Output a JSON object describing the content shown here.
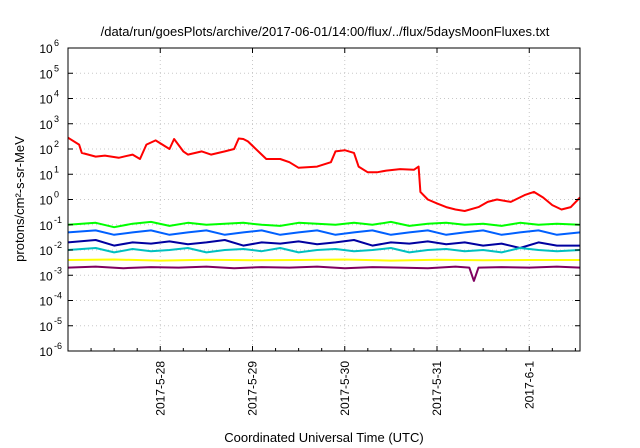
{
  "chart_data": {
    "type": "line",
    "title": "/data/run/goesPlots/archive/2017-06-01/14:00/flux/../flux/5daysMoonFluxes.txt",
    "xlabel": "Coordinated Universal Time (UTC)",
    "ylabel": "protons/cm²-s-sr-MeV",
    "y_scale": "log",
    "ylim": [
      1e-06,
      1000000.0
    ],
    "xlim": [
      0,
      5.55
    ],
    "x_ticks": [
      {
        "pos": 1,
        "label": "2017-5-28"
      },
      {
        "pos": 2,
        "label": "2017-5-29"
      },
      {
        "pos": 3,
        "label": "2017-5-30"
      },
      {
        "pos": 4,
        "label": "2017-5-31"
      },
      {
        "pos": 5,
        "label": "2017-6-1"
      }
    ],
    "y_ticks": [
      {
        "exp": "-6",
        "label": "10"
      },
      {
        "exp": "-5",
        "label": "10"
      },
      {
        "exp": "-4",
        "label": "10"
      },
      {
        "exp": "-3",
        "label": "10"
      },
      {
        "exp": "-2",
        "label": "10"
      },
      {
        "exp": "-1",
        "label": "10"
      },
      {
        "exp": "0",
        "label": "10"
      },
      {
        "exp": "1",
        "label": "10"
      },
      {
        "exp": "2",
        "label": "10"
      },
      {
        "exp": "3",
        "label": "10"
      },
      {
        "exp": "4",
        "label": "10"
      },
      {
        "exp": "5",
        "label": "10"
      },
      {
        "exp": "6",
        "label": "10"
      }
    ],
    "grid": true,
    "colors": {
      "red": "#ff0000",
      "green": "#00ff00",
      "cyan": "#00c0c0",
      "blue": "#0060ff",
      "navy": "#0000a0",
      "yellow": "#ffff00",
      "purple": "#800060"
    },
    "series": [
      {
        "color": "#ff0000",
        "x": [
          0.0,
          0.12,
          0.15,
          0.3,
          0.4,
          0.55,
          0.7,
          0.78,
          0.85,
          0.95,
          1.1,
          1.15,
          1.25,
          1.3,
          1.45,
          1.55,
          1.7,
          1.8,
          1.85,
          1.9,
          1.95,
          2.1,
          2.15,
          2.3,
          2.4,
          2.5,
          2.7,
          2.85,
          2.9,
          3.0,
          3.1,
          3.15,
          3.25,
          3.35,
          3.45,
          3.6,
          3.75,
          3.8,
          3.82,
          3.9,
          4.0,
          4.1,
          4.2,
          4.3,
          4.45,
          4.55,
          4.65,
          4.8,
          4.95,
          5.05,
          5.15,
          5.25,
          5.35,
          5.45,
          5.55
        ],
        "y": [
          280,
          150,
          70,
          50,
          55,
          45,
          60,
          40,
          150,
          220,
          100,
          250,
          80,
          60,
          80,
          60,
          80,
          100,
          260,
          250,
          200,
          60,
          40,
          40,
          30,
          18,
          20,
          30,
          80,
          90,
          70,
          20,
          12,
          12,
          14,
          16,
          15,
          20,
          2,
          1,
          0.7,
          0.5,
          0.4,
          0.35,
          0.5,
          0.8,
          1.0,
          0.8,
          1.5,
          2.0,
          1.2,
          0.6,
          0.4,
          0.5,
          1.2
        ]
      },
      {
        "color": "#00ff00",
        "x": [
          0.0,
          0.3,
          0.5,
          0.7,
          0.9,
          1.1,
          1.3,
          1.5,
          1.7,
          1.9,
          2.1,
          2.3,
          2.5,
          2.7,
          2.9,
          3.1,
          3.3,
          3.5,
          3.7,
          3.9,
          4.1,
          4.3,
          4.5,
          4.7,
          4.9,
          5.1,
          5.3,
          5.55
        ],
        "y": [
          0.1,
          0.12,
          0.08,
          0.11,
          0.13,
          0.09,
          0.12,
          0.1,
          0.11,
          0.12,
          0.1,
          0.09,
          0.12,
          0.11,
          0.1,
          0.12,
          0.1,
          0.13,
          0.09,
          0.11,
          0.12,
          0.1,
          0.11,
          0.09,
          0.12,
          0.1,
          0.11,
          0.1
        ]
      },
      {
        "color": "#0060ff",
        "x": [
          0.0,
          0.3,
          0.5,
          0.7,
          0.9,
          1.1,
          1.3,
          1.5,
          1.7,
          1.9,
          2.1,
          2.3,
          2.5,
          2.7,
          2.9,
          3.1,
          3.3,
          3.5,
          3.7,
          3.9,
          4.1,
          4.3,
          4.5,
          4.7,
          4.9,
          5.1,
          5.3,
          5.55
        ],
        "y": [
          0.05,
          0.06,
          0.04,
          0.05,
          0.06,
          0.04,
          0.05,
          0.06,
          0.04,
          0.05,
          0.06,
          0.04,
          0.05,
          0.06,
          0.04,
          0.05,
          0.06,
          0.04,
          0.05,
          0.06,
          0.04,
          0.05,
          0.06,
          0.04,
          0.05,
          0.06,
          0.04,
          0.05
        ]
      },
      {
        "color": "#0000a0",
        "x": [
          0.0,
          0.3,
          0.5,
          0.7,
          0.9,
          1.1,
          1.3,
          1.5,
          1.7,
          1.9,
          2.1,
          2.3,
          2.5,
          2.7,
          2.9,
          3.1,
          3.3,
          3.5,
          3.7,
          3.9,
          4.1,
          4.3,
          4.5,
          4.7,
          4.9,
          5.1,
          5.3,
          5.55
        ],
        "y": [
          0.02,
          0.025,
          0.015,
          0.02,
          0.018,
          0.022,
          0.017,
          0.02,
          0.025,
          0.015,
          0.02,
          0.018,
          0.022,
          0.017,
          0.02,
          0.025,
          0.015,
          0.02,
          0.018,
          0.022,
          0.017,
          0.02,
          0.015,
          0.018,
          0.012,
          0.02,
          0.015,
          0.015
        ]
      },
      {
        "color": "#00c0c0",
        "x": [
          0.0,
          0.3,
          0.5,
          0.7,
          0.9,
          1.1,
          1.3,
          1.5,
          1.7,
          1.9,
          2.1,
          2.3,
          2.5,
          2.7,
          2.9,
          3.1,
          3.3,
          3.5,
          3.7,
          3.9,
          4.1,
          4.3,
          4.5,
          4.7,
          4.9,
          5.1,
          5.3,
          5.55
        ],
        "y": [
          0.01,
          0.012,
          0.008,
          0.011,
          0.009,
          0.01,
          0.012,
          0.008,
          0.01,
          0.011,
          0.009,
          0.012,
          0.008,
          0.01,
          0.011,
          0.009,
          0.01,
          0.012,
          0.008,
          0.01,
          0.011,
          0.009,
          0.01,
          0.008,
          0.012,
          0.01,
          0.009,
          0.01
        ]
      },
      {
        "color": "#ffff00",
        "x": [
          0.0,
          0.5,
          1.0,
          1.5,
          2.0,
          2.5,
          3.0,
          3.5,
          4.0,
          4.5,
          5.0,
          5.55
        ],
        "y": [
          0.004,
          0.0042,
          0.0038,
          0.0041,
          0.0039,
          0.004,
          0.0042,
          0.0038,
          0.0041,
          0.0039,
          0.004,
          0.004
        ]
      },
      {
        "color": "#800060",
        "x": [
          0.0,
          0.3,
          0.6,
          0.9,
          1.2,
          1.5,
          1.8,
          2.1,
          2.4,
          2.7,
          3.0,
          3.3,
          3.6,
          3.9,
          4.2,
          4.35,
          4.4,
          4.45,
          4.7,
          5.0,
          5.3,
          5.55
        ],
        "y": [
          0.002,
          0.0022,
          0.0019,
          0.0021,
          0.002,
          0.0022,
          0.0019,
          0.0021,
          0.002,
          0.0022,
          0.0019,
          0.0021,
          0.002,
          0.0019,
          0.0022,
          0.002,
          0.0006,
          0.002,
          0.0021,
          0.002,
          0.0022,
          0.002
        ]
      }
    ]
  }
}
